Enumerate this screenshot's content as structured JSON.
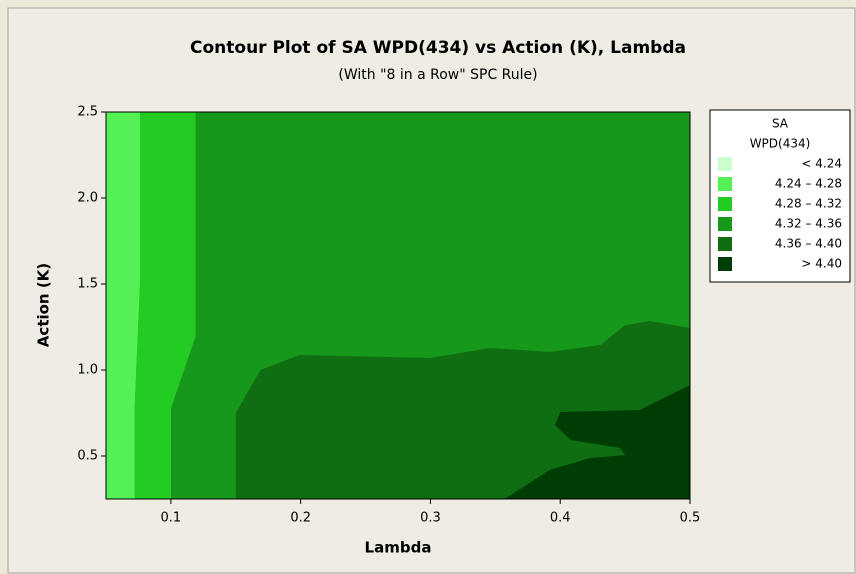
{
  "chart_data": {
    "type": "contour",
    "title": "Contour Plot of SA WPD(434) vs Action (K), Lambda",
    "subtitle": "(With \"8 in a Row\" SPC Rule)",
    "x_label": "Lambda",
    "y_label": "Action (K)",
    "legend_title": [
      "SA",
      "WPD(434)"
    ],
    "xlim": [
      0.05,
      0.5
    ],
    "xticks": [
      0.1,
      0.2,
      0.3,
      0.4,
      0.5
    ],
    "ylim": [
      0.25,
      2.5
    ],
    "yticks": [
      0.5,
      {
        "value": 1,
        "label": "1.0"
      },
      1.5,
      {
        "value": 2,
        "label": "2.0"
      },
      2.5
    ],
    "series": [
      {
        "name": "< 4.24",
        "color": "#ccffcc"
      },
      {
        "name": "4.24 – 4.28",
        "color": "#55f055",
        "x": [
          0.05,
          0.076,
          0.076,
          0.072,
          0.072,
          0.05
        ],
        "y": [
          2.5,
          2.5,
          1.5,
          0.8,
          0.25,
          0.25
        ]
      },
      {
        "name": "4.28 – 4.32",
        "color": "#22cc22",
        "x": [
          0.076,
          0.119,
          0.119,
          0.1,
          0.1,
          0.072,
          0.072,
          0.076
        ],
        "y": [
          2.5,
          2.5,
          1.2,
          0.78,
          0.25,
          0.25,
          0.8,
          1.5
        ]
      },
      {
        "name": "4.32 – 4.36",
        "color": "#16991a",
        "x": [
          0.119,
          0.5,
          0.5,
          0.1,
          0.1,
          0.119
        ],
        "y": [
          2.5,
          2.5,
          0.25,
          0.25,
          0.78,
          1.2
        ]
      },
      {
        "name": "4.36 – 4.40",
        "color": "#0f6e12",
        "x": [
          0.15,
          0.15,
          0.169,
          0.199,
          0.3,
          0.346,
          0.392,
          0.431,
          0.45,
          0.469,
          0.5,
          0.5
        ],
        "y": [
          0.25,
          0.75,
          1.0,
          1.087,
          1.07,
          1.128,
          1.105,
          1.145,
          1.26,
          1.285,
          1.244,
          0.25
        ]
      },
      {
        "name": "> 4.40",
        "color": "#003d05",
        "x": [
          0.5,
          0.461,
          0.4,
          0.396,
          0.408,
          0.446,
          0.45,
          0.423,
          0.392,
          0.357,
          0.5
        ],
        "y": [
          0.913,
          0.767,
          0.756,
          0.68,
          0.593,
          0.547,
          0.506,
          0.488,
          0.419,
          0.25,
          0.25
        ]
      }
    ]
  }
}
